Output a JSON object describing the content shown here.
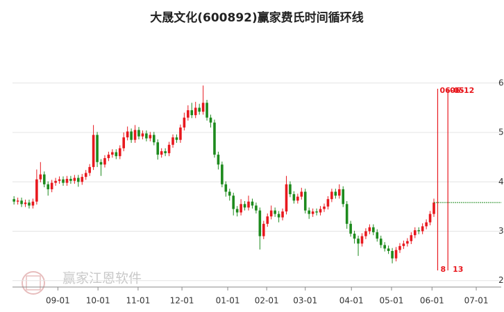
{
  "chart_data": {
    "type": "candlestick",
    "title": "大晟文化(600892)赢家费氏时间循环线",
    "watermark": "赢家江恩软件",
    "up_color": "#e8181e",
    "down_color": "#1d8a1d",
    "cycle_color": "#e8181e",
    "grid": true,
    "xlim": [
      -0.4,
      128.8
    ],
    "xticks": [
      {
        "value": 11.6,
        "label": "09-01"
      },
      {
        "value": 22.2,
        "label": "10-01"
      },
      {
        "value": 32.8,
        "label": "11-01"
      },
      {
        "value": 44.4,
        "label": "12-01"
      },
      {
        "value": 56.5,
        "label": "01-01"
      },
      {
        "value": 66.8,
        "label": "02-01"
      },
      {
        "value": 77,
        "label": "03-01"
      },
      {
        "value": 89.2,
        "label": "04-01"
      },
      {
        "value": 99.8,
        "label": "05-01"
      },
      {
        "value": 110.5,
        "label": "06-01"
      },
      {
        "value": 122.2,
        "label": "07-01"
      }
    ],
    "ylim": [
      1.87,
      7.12
    ],
    "yticks": [
      2,
      3,
      4,
      5,
      6
    ],
    "open": [
      3.65,
      3.6,
      3.62,
      3.55,
      3.58,
      3.52,
      3.6,
      4.05,
      4.15,
      3.95,
      3.85,
      3.98,
      4.02,
      4.05,
      3.98,
      4.06,
      4.02,
      4.08,
      4.0,
      4.1,
      4.18,
      4.3,
      4.95,
      4.4,
      4.35,
      4.48,
      4.55,
      4.6,
      4.52,
      4.68,
      4.9,
      5.02,
      4.85,
      5.05,
      4.92,
      4.98,
      4.88,
      4.95,
      4.8,
      4.55,
      4.62,
      4.58,
      4.75,
      4.9,
      4.85,
      5.1,
      5.3,
      5.45,
      5.35,
      5.5,
      5.42,
      5.6,
      5.3,
      5.2,
      4.55,
      4.35,
      3.95,
      3.8,
      3.72,
      3.45,
      3.38,
      3.55,
      3.48,
      3.6,
      3.52,
      3.42,
      2.9,
      3.15,
      3.3,
      3.42,
      3.35,
      3.28,
      3.4,
      3.95,
      3.75,
      3.62,
      3.7,
      3.8,
      3.42,
      3.35,
      3.4,
      3.38,
      3.45,
      3.5,
      3.65,
      3.8,
      3.72,
      3.85,
      3.55,
      3.15,
      2.95,
      2.85,
      2.75,
      2.9,
      3.0,
      3.08,
      2.98,
      2.85,
      2.72,
      2.65,
      2.6,
      2.45,
      2.62,
      2.7,
      2.75,
      2.8,
      2.92,
      3.02,
      3.0,
      3.1,
      3.18,
      3.35
    ],
    "high": [
      3.71,
      3.68,
      3.68,
      3.64,
      3.64,
      3.66,
      4.25,
      4.4,
      4.21,
      4.01,
      4.04,
      4.08,
      4.11,
      4.11,
      4.12,
      4.12,
      4.14,
      4.14,
      4.16,
      4.24,
      4.36,
      5.15,
      5.01,
      4.46,
      4.54,
      4.61,
      4.66,
      4.66,
      4.74,
      5.0,
      5.12,
      5.08,
      5.15,
      5.11,
      5.04,
      5.04,
      5.01,
      5.01,
      4.86,
      4.68,
      4.68,
      4.81,
      4.96,
      4.96,
      5.16,
      5.4,
      5.55,
      5.6,
      5.62,
      5.58,
      5.95,
      5.66,
      5.36,
      5.26,
      4.61,
      4.41,
      4.01,
      3.86,
      3.78,
      3.51,
      3.65,
      3.61,
      3.72,
      3.66,
      3.58,
      3.48,
      3.21,
      3.36,
      3.52,
      3.48,
      3.41,
      3.46,
      4.12,
      4.01,
      3.81,
      3.76,
      3.88,
      3.86,
      3.48,
      3.46,
      3.46,
      3.51,
      3.56,
      3.71,
      3.86,
      3.86,
      3.95,
      3.91,
      3.61,
      3.21,
      3.01,
      2.91,
      2.96,
      3.06,
      3.14,
      3.14,
      3.04,
      2.91,
      2.78,
      2.71,
      2.66,
      2.68,
      2.76,
      2.81,
      2.86,
      2.98,
      3.08,
      3.08,
      3.16,
      3.24,
      3.41,
      3.66
    ],
    "low": [
      3.54,
      3.54,
      3.49,
      3.49,
      3.46,
      3.46,
      3.54,
      3.99,
      3.89,
      3.72,
      3.79,
      3.92,
      3.96,
      3.92,
      3.92,
      3.96,
      3.96,
      3.9,
      3.94,
      4.04,
      4.12,
      4.24,
      4.3,
      4.12,
      4.29,
      4.42,
      4.49,
      4.46,
      4.46,
      4.62,
      4.84,
      4.79,
      4.79,
      4.86,
      4.86,
      4.82,
      4.82,
      4.74,
      4.45,
      4.49,
      4.52,
      4.52,
      4.69,
      4.79,
      4.79,
      5.04,
      5.24,
      5.29,
      5.29,
      5.36,
      5.36,
      5.24,
      5.1,
      4.49,
      4.25,
      3.89,
      3.7,
      3.62,
      3.32,
      3.3,
      3.32,
      3.42,
      3.42,
      3.46,
      3.36,
      2.63,
      2.84,
      3.09,
      3.24,
      3.29,
      3.18,
      3.22,
      3.34,
      3.69,
      3.56,
      3.56,
      3.64,
      3.36,
      3.25,
      3.29,
      3.32,
      3.32,
      3.39,
      3.44,
      3.59,
      3.66,
      3.66,
      3.49,
      3.05,
      2.89,
      2.75,
      2.5,
      2.69,
      2.84,
      2.94,
      2.92,
      2.79,
      2.66,
      2.59,
      2.54,
      2.35,
      2.39,
      2.56,
      2.64,
      2.69,
      2.74,
      2.86,
      2.94,
      2.94,
      3.04,
      3.12,
      3.29
    ],
    "close": [
      3.6,
      3.62,
      3.55,
      3.58,
      3.52,
      3.6,
      4.05,
      4.15,
      3.95,
      3.85,
      3.98,
      4.02,
      4.05,
      3.98,
      4.06,
      4.02,
      4.08,
      4.0,
      4.1,
      4.18,
      4.3,
      4.95,
      4.4,
      4.35,
      4.48,
      4.55,
      4.6,
      4.52,
      4.68,
      4.9,
      5.02,
      4.85,
      5.05,
      4.92,
      4.98,
      4.88,
      4.95,
      4.8,
      4.55,
      4.62,
      4.58,
      4.75,
      4.9,
      4.85,
      5.1,
      5.3,
      5.45,
      5.35,
      5.5,
      5.42,
      5.6,
      5.3,
      5.2,
      4.55,
      4.35,
      3.95,
      3.8,
      3.72,
      3.45,
      3.38,
      3.55,
      3.48,
      3.6,
      3.52,
      3.42,
      2.9,
      3.15,
      3.3,
      3.42,
      3.35,
      3.28,
      3.4,
      3.95,
      3.75,
      3.62,
      3.7,
      3.8,
      3.42,
      3.35,
      3.4,
      3.38,
      3.45,
      3.5,
      3.65,
      3.8,
      3.72,
      3.85,
      3.55,
      3.15,
      2.95,
      2.85,
      2.75,
      2.9,
      3.0,
      3.08,
      2.98,
      2.85,
      2.72,
      2.65,
      2.6,
      2.45,
      2.62,
      2.7,
      2.75,
      2.8,
      2.92,
      3.02,
      3.0,
      3.1,
      3.18,
      3.35,
      3.58
    ],
    "cycle_lines": [
      {
        "x": 112,
        "date": "06-05",
        "n": 8
      },
      {
        "x": 114.7,
        "date": "06-12",
        "n": 13
      }
    ]
  }
}
